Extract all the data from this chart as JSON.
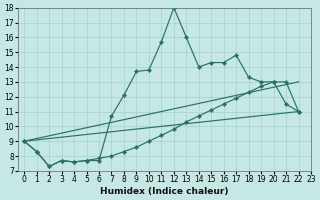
{
  "xlabel": "Humidex (Indice chaleur)",
  "xlim": [
    -0.5,
    23
  ],
  "ylim": [
    7,
    18
  ],
  "xticks": [
    0,
    1,
    2,
    3,
    4,
    5,
    6,
    7,
    8,
    9,
    10,
    11,
    12,
    13,
    14,
    15,
    16,
    17,
    18,
    19,
    20,
    21,
    22,
    23
  ],
  "yticks": [
    7,
    8,
    9,
    10,
    11,
    12,
    13,
    14,
    15,
    16,
    17,
    18
  ],
  "bg_color": "#c5e8e5",
  "grid_color": "#a8d4d0",
  "line_color": "#2a7068",
  "line1_x": [
    0,
    1,
    2,
    3,
    4,
    5,
    6,
    7,
    8,
    9,
    10,
    11,
    12,
    13,
    14,
    15,
    16,
    17,
    18,
    19,
    20,
    21,
    22
  ],
  "line1_y": [
    9.0,
    8.3,
    7.3,
    7.7,
    7.6,
    7.7,
    7.7,
    10.7,
    12.1,
    13.7,
    13.8,
    15.7,
    18.0,
    16.0,
    14.0,
    14.3,
    14.3,
    14.8,
    13.3,
    13.0,
    13.0,
    11.5,
    11.0
  ],
  "line2_x": [
    0,
    1,
    2,
    3,
    4,
    5,
    6,
    7,
    8,
    9,
    10,
    11,
    12,
    13,
    14,
    15,
    16,
    17,
    18,
    19,
    20,
    21,
    22
  ],
  "line2_y": [
    9.0,
    8.3,
    7.3,
    7.7,
    7.6,
    7.7,
    7.85,
    8.0,
    8.3,
    8.6,
    9.0,
    9.4,
    9.8,
    10.3,
    10.7,
    11.1,
    11.5,
    11.9,
    12.3,
    12.7,
    13.0,
    13.0,
    11.0
  ],
  "line3_x": [
    0,
    22
  ],
  "line3_y": [
    9.0,
    13.0
  ],
  "line4_x": [
    0,
    22
  ],
  "line4_y": [
    9.0,
    11.0
  ]
}
